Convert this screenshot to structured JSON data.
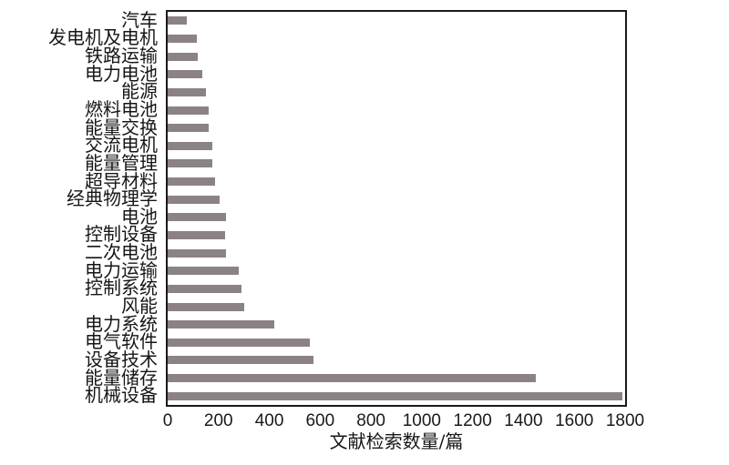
{
  "chart_data": {
    "type": "bar",
    "orientation": "horizontal",
    "title": "",
    "xlabel": "文献检索数量/篇",
    "ylabel": "",
    "xlim": [
      0,
      1800
    ],
    "xticks": [
      0,
      200,
      400,
      600,
      800,
      1000,
      1200,
      1400,
      1600,
      1800
    ],
    "grid": false,
    "legend_position": "none",
    "bar_color": "#8b8287",
    "axis_color": "#1a1a1a",
    "categories": [
      "汽车",
      "发电机及电机",
      "铁路运输",
      "电力电池",
      "能源",
      "燃料电池",
      "能量交换",
      "交流电机",
      "能量管理",
      "超导材料",
      "经典物理学",
      "电池",
      "控制设备",
      "二次电池",
      "电力运输",
      "控制系统",
      "风能",
      "电力系统",
      "电气软件",
      "设备技术",
      "能量储存",
      "机械设备"
    ],
    "values": [
      75,
      115,
      120,
      135,
      150,
      160,
      160,
      175,
      175,
      185,
      205,
      230,
      225,
      230,
      280,
      290,
      300,
      420,
      560,
      575,
      1450,
      1790
    ]
  }
}
